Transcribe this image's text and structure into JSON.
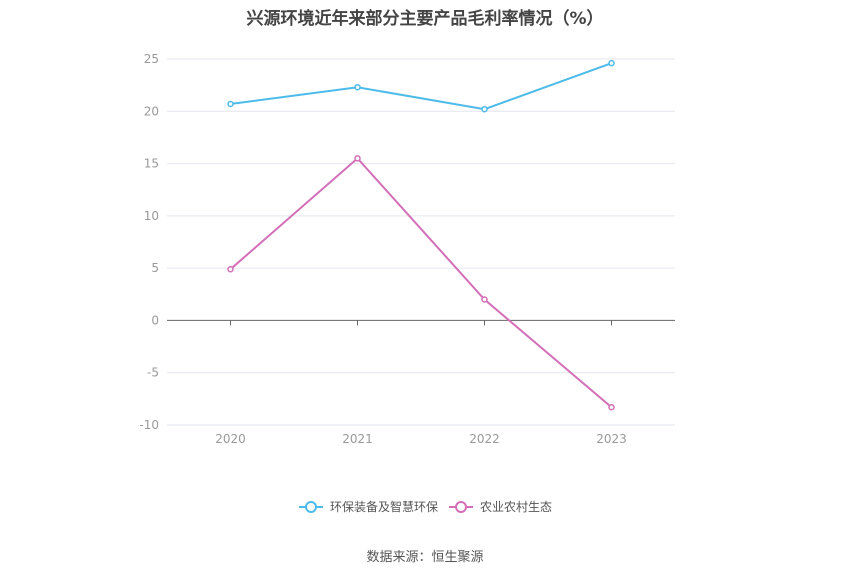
{
  "chart_data": {
    "type": "line",
    "title": "兴源环境近年来部分主要产品毛利率情况（%）",
    "categories": [
      "2020",
      "2021",
      "2022",
      "2023"
    ],
    "series": [
      {
        "name": "环保装备及智慧环保",
        "color": "#4dbbe9",
        "values": [
          20.7,
          22.3,
          20.2,
          24.6
        ]
      },
      {
        "name": "农业农村生态",
        "color": "#d36fb8",
        "values": [
          4.9,
          15.5,
          2.0,
          -8.3
        ]
      }
    ],
    "ylim": [
      -10,
      25
    ],
    "yticks": [
      "25",
      "20",
      "15",
      "10",
      "5",
      "0",
      "-5",
      "-10"
    ],
    "grid": true,
    "legend": "bottom"
  },
  "source": "数据来源：恒生聚源"
}
